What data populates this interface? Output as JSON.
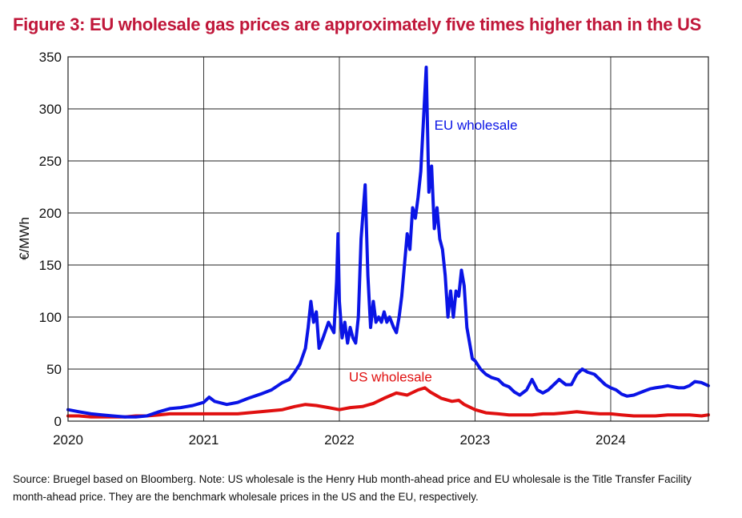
{
  "title": "Figure 3: EU wholesale gas prices are approximately five times higher than in the US",
  "source_note": "Source: Bruegel based on Bloomberg. Note: US wholesale is the Henry Hub month-ahead price and EU wholesale is the Title Transfer Facility month-ahead price. They are the benchmark wholesale prices in the US and the EU, respectively.",
  "colors": {
    "title": "#c0173a",
    "eu": "#0a14e6",
    "us": "#e01010",
    "grid": "#222222"
  },
  "chart_data": {
    "type": "line",
    "title": "Figure 3: EU wholesale gas prices are approximately five times higher than in the US",
    "xlabel": "",
    "ylabel": "€/MWh",
    "xlim": [
      2020.0,
      2024.72
    ],
    "ylim": [
      0,
      350
    ],
    "x_ticks": [
      "2020",
      "2021",
      "2022",
      "2023",
      "2024"
    ],
    "y_ticks": [
      "0",
      "50",
      "100",
      "150",
      "200",
      "250",
      "300",
      "350"
    ],
    "grid": true,
    "legend": "inline labels",
    "series": [
      {
        "name": "EU wholesale",
        "color": "#0a14e6",
        "points": [
          [
            2020.0,
            11
          ],
          [
            2020.08,
            9
          ],
          [
            2020.17,
            7
          ],
          [
            2020.25,
            6
          ],
          [
            2020.33,
            5
          ],
          [
            2020.42,
            4
          ],
          [
            2020.5,
            4
          ],
          [
            2020.58,
            5
          ],
          [
            2020.67,
            9
          ],
          [
            2020.75,
            12
          ],
          [
            2020.83,
            13
          ],
          [
            2020.92,
            15
          ],
          [
            2021.0,
            18
          ],
          [
            2021.04,
            23
          ],
          [
            2021.08,
            19
          ],
          [
            2021.17,
            16
          ],
          [
            2021.25,
            18
          ],
          [
            2021.33,
            22
          ],
          [
            2021.42,
            26
          ],
          [
            2021.5,
            30
          ],
          [
            2021.58,
            37
          ],
          [
            2021.63,
            40
          ],
          [
            2021.67,
            47
          ],
          [
            2021.71,
            55
          ],
          [
            2021.75,
            70
          ],
          [
            2021.77,
            90
          ],
          [
            2021.79,
            115
          ],
          [
            2021.81,
            95
          ],
          [
            2021.83,
            105
          ],
          [
            2021.85,
            70
          ],
          [
            2021.88,
            80
          ],
          [
            2021.92,
            95
          ],
          [
            2021.96,
            85
          ],
          [
            2021.98,
            135
          ],
          [
            2021.99,
            180
          ],
          [
            2022.0,
            115
          ],
          [
            2022.02,
            80
          ],
          [
            2022.04,
            95
          ],
          [
            2022.06,
            75
          ],
          [
            2022.08,
            90
          ],
          [
            2022.1,
            80
          ],
          [
            2022.12,
            75
          ],
          [
            2022.14,
            100
          ],
          [
            2022.16,
            175
          ],
          [
            2022.19,
            227
          ],
          [
            2022.21,
            140
          ],
          [
            2022.23,
            90
          ],
          [
            2022.25,
            115
          ],
          [
            2022.27,
            95
          ],
          [
            2022.29,
            100
          ],
          [
            2022.31,
            95
          ],
          [
            2022.33,
            105
          ],
          [
            2022.35,
            95
          ],
          [
            2022.37,
            100
          ],
          [
            2022.4,
            90
          ],
          [
            2022.42,
            85
          ],
          [
            2022.44,
            100
          ],
          [
            2022.46,
            120
          ],
          [
            2022.48,
            150
          ],
          [
            2022.5,
            180
          ],
          [
            2022.52,
            165
          ],
          [
            2022.54,
            205
          ],
          [
            2022.56,
            195
          ],
          [
            2022.58,
            215
          ],
          [
            2022.6,
            240
          ],
          [
            2022.62,
            290
          ],
          [
            2022.64,
            340
          ],
          [
            2022.66,
            220
          ],
          [
            2022.68,
            245
          ],
          [
            2022.7,
            185
          ],
          [
            2022.72,
            205
          ],
          [
            2022.74,
            175
          ],
          [
            2022.76,
            165
          ],
          [
            2022.78,
            140
          ],
          [
            2022.8,
            100
          ],
          [
            2022.82,
            125
          ],
          [
            2022.84,
            100
          ],
          [
            2022.86,
            125
          ],
          [
            2022.88,
            120
          ],
          [
            2022.9,
            145
          ],
          [
            2022.92,
            130
          ],
          [
            2022.94,
            90
          ],
          [
            2022.96,
            75
          ],
          [
            2022.98,
            60
          ],
          [
            2023.0,
            58
          ],
          [
            2023.04,
            50
          ],
          [
            2023.08,
            45
          ],
          [
            2023.12,
            42
          ],
          [
            2023.17,
            40
          ],
          [
            2023.21,
            35
          ],
          [
            2023.25,
            33
          ],
          [
            2023.29,
            28
          ],
          [
            2023.33,
            25
          ],
          [
            2023.38,
            30
          ],
          [
            2023.42,
            40
          ],
          [
            2023.46,
            30
          ],
          [
            2023.5,
            27
          ],
          [
            2023.54,
            30
          ],
          [
            2023.58,
            35
          ],
          [
            2023.62,
            40
          ],
          [
            2023.67,
            35
          ],
          [
            2023.71,
            35
          ],
          [
            2023.75,
            45
          ],
          [
            2023.79,
            50
          ],
          [
            2023.83,
            47
          ],
          [
            2023.88,
            45
          ],
          [
            2023.92,
            40
          ],
          [
            2023.96,
            35
          ],
          [
            2024.0,
            32
          ],
          [
            2024.04,
            30
          ],
          [
            2024.08,
            26
          ],
          [
            2024.12,
            24
          ],
          [
            2024.17,
            25
          ],
          [
            2024.21,
            27
          ],
          [
            2024.25,
            29
          ],
          [
            2024.29,
            31
          ],
          [
            2024.33,
            32
          ],
          [
            2024.38,
            33
          ],
          [
            2024.42,
            34
          ],
          [
            2024.46,
            33
          ],
          [
            2024.5,
            32
          ],
          [
            2024.54,
            32
          ],
          [
            2024.58,
            34
          ],
          [
            2024.62,
            38
          ],
          [
            2024.67,
            37
          ],
          [
            2024.72,
            34
          ]
        ]
      },
      {
        "name": "US wholesale",
        "color": "#e01010",
        "points": [
          [
            2020.0,
            5
          ],
          [
            2020.08,
            5
          ],
          [
            2020.17,
            4
          ],
          [
            2020.25,
            4
          ],
          [
            2020.33,
            4
          ],
          [
            2020.42,
            4
          ],
          [
            2020.5,
            5
          ],
          [
            2020.58,
            5
          ],
          [
            2020.67,
            6
          ],
          [
            2020.75,
            7
          ],
          [
            2020.83,
            7
          ],
          [
            2020.92,
            7
          ],
          [
            2021.0,
            7
          ],
          [
            2021.08,
            7
          ],
          [
            2021.17,
            7
          ],
          [
            2021.25,
            7
          ],
          [
            2021.33,
            8
          ],
          [
            2021.42,
            9
          ],
          [
            2021.5,
            10
          ],
          [
            2021.58,
            11
          ],
          [
            2021.67,
            14
          ],
          [
            2021.75,
            16
          ],
          [
            2021.83,
            15
          ],
          [
            2021.92,
            13
          ],
          [
            2022.0,
            11
          ],
          [
            2022.08,
            13
          ],
          [
            2022.17,
            14
          ],
          [
            2022.25,
            17
          ],
          [
            2022.33,
            22
          ],
          [
            2022.42,
            27
          ],
          [
            2022.5,
            25
          ],
          [
            2022.58,
            30
          ],
          [
            2022.63,
            32
          ],
          [
            2022.67,
            28
          ],
          [
            2022.75,
            22
          ],
          [
            2022.83,
            19
          ],
          [
            2022.88,
            20
          ],
          [
            2022.92,
            16
          ],
          [
            2023.0,
            11
          ],
          [
            2023.08,
            8
          ],
          [
            2023.17,
            7
          ],
          [
            2023.25,
            6
          ],
          [
            2023.33,
            6
          ],
          [
            2023.42,
            6
          ],
          [
            2023.5,
            7
          ],
          [
            2023.58,
            7
          ],
          [
            2023.67,
            8
          ],
          [
            2023.75,
            9
          ],
          [
            2023.83,
            8
          ],
          [
            2023.92,
            7
          ],
          [
            2024.0,
            7
          ],
          [
            2024.08,
            6
          ],
          [
            2024.17,
            5
          ],
          [
            2024.25,
            5
          ],
          [
            2024.33,
            5
          ],
          [
            2024.42,
            6
          ],
          [
            2024.5,
            6
          ],
          [
            2024.58,
            6
          ],
          [
            2024.67,
            5
          ],
          [
            2024.72,
            6
          ]
        ]
      }
    ],
    "annotations": [
      {
        "text": "EU wholesale",
        "x": 2022.7,
        "y": 280,
        "color": "#0a14e6"
      },
      {
        "text": "US wholesale",
        "x": 2022.07,
        "y": 38,
        "color": "#e01010"
      }
    ]
  }
}
